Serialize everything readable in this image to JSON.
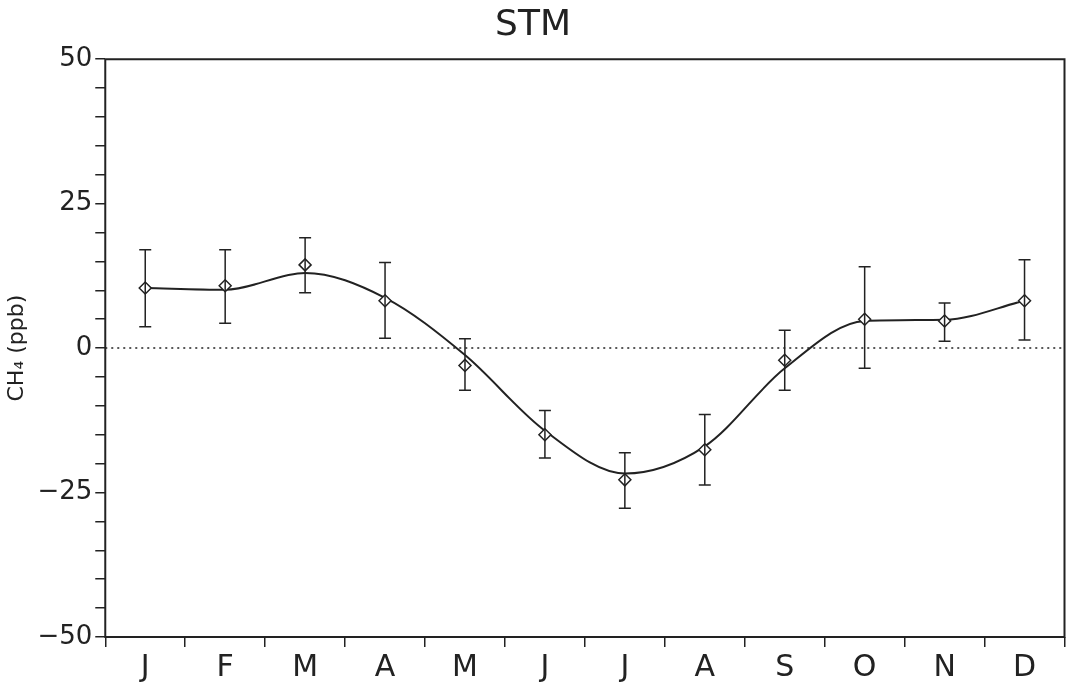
{
  "chart_data": {
    "type": "line",
    "title": "STM",
    "ylabel": "CH₄ (ppb)",
    "categories": [
      "J",
      "F",
      "M",
      "A",
      "M",
      "J",
      "J",
      "A",
      "S",
      "O",
      "N",
      "D"
    ],
    "ylim": [
      -50,
      50
    ],
    "yticks": [
      -50,
      {
        "value": -45,
        "label": null
      },
      {
        "value": -40,
        "label": null
      },
      {
        "value": -35,
        "label": null
      },
      {
        "value": -30,
        "label": null
      },
      -25,
      {
        "value": -20,
        "label": null
      },
      {
        "value": -15,
        "label": null
      },
      {
        "value": -10,
        "label": null
      },
      {
        "value": -5,
        "label": null
      },
      0,
      {
        "value": 5,
        "label": null
      },
      {
        "value": 10,
        "label": null
      },
      {
        "value": 15,
        "label": null
      },
      {
        "value": 20,
        "label": null
      },
      25,
      {
        "value": 30,
        "label": null
      },
      {
        "value": 35,
        "label": null
      },
      {
        "value": 40,
        "label": null
      },
      {
        "value": 45,
        "label": null
      },
      50
    ],
    "grid": false,
    "legend": false,
    "series": [
      {
        "color": "#222222",
        "marker": "none",
        "line_style": "solid",
        "values": [
          10.4,
          10.1,
          13,
          8.7,
          -1.2,
          -14.3,
          -21.7,
          -17,
          -3.5,
          4.7,
          4.9,
          8.2
        ]
      },
      {
        "type": "scatter",
        "color": "#222222",
        "marker": "diamond",
        "values": [
          10.4,
          10.8,
          14.4,
          8.2,
          -3,
          -15,
          -22.8,
          -17.6,
          -2.1,
          5,
          4.7,
          8.2
        ],
        "errors": [
          [
            3.7,
            17
          ],
          [
            4.3,
            17
          ],
          [
            9.6,
            19.1
          ],
          [
            1.7,
            14.8
          ],
          [
            -7.3,
            1.6
          ],
          [
            -19,
            -10.8
          ],
          [
            -27.7,
            -18.1
          ],
          [
            -23.7,
            -11.5
          ],
          [
            -7.3,
            3.1
          ],
          [
            -3.5,
            14.1
          ],
          [
            1.2,
            7.8
          ],
          [
            1.4,
            15.3
          ]
        ]
      }
    ],
    "ref_lines": [
      {
        "axis": "y",
        "value": 0,
        "line_style": "dotted",
        "color": "#222222"
      }
    ]
  }
}
